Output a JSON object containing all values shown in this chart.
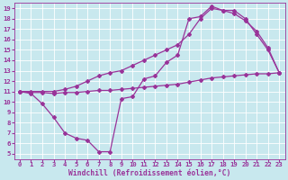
{
  "background_color": "#c8e8ee",
  "grid_color": "#b0d8e0",
  "line_color": "#993399",
  "markersize": 2.0,
  "linewidth": 0.9,
  "xlabel": "Windchill (Refroidissement éolien,°C)",
  "xlabel_fontsize": 5.8,
  "tick_fontsize": 5.2,
  "xlim": [
    -0.5,
    23.5
  ],
  "ylim": [
    4.5,
    19.5
  ],
  "xticks": [
    0,
    1,
    2,
    3,
    4,
    5,
    6,
    7,
    8,
    9,
    10,
    11,
    12,
    13,
    14,
    15,
    16,
    17,
    18,
    19,
    20,
    21,
    22,
    23
  ],
  "yticks": [
    5,
    6,
    7,
    8,
    9,
    10,
    11,
    12,
    13,
    14,
    15,
    16,
    17,
    18,
    19
  ],
  "curve1_x": [
    0,
    1,
    2,
    3,
    4,
    5,
    6,
    7,
    8,
    9,
    10,
    11,
    12,
    13,
    14,
    15,
    16,
    17,
    18,
    19,
    20,
    21,
    22,
    23
  ],
  "curve1_y": [
    11.0,
    10.8,
    9.8,
    8.5,
    7.0,
    6.5,
    6.3,
    5.2,
    5.2,
    10.3,
    10.5,
    12.2,
    12.5,
    13.8,
    14.5,
    18.0,
    18.2,
    19.2,
    18.8,
    18.8,
    18.0,
    16.5,
    15.0,
    12.8
  ],
  "curve2_x": [
    0,
    1,
    2,
    3,
    4,
    5,
    6,
    7,
    8,
    9,
    10,
    11,
    12,
    13,
    14,
    15,
    16,
    17,
    18,
    19,
    20,
    21,
    22,
    23
  ],
  "curve2_y": [
    11.0,
    11.0,
    11.0,
    11.0,
    11.2,
    11.5,
    12.0,
    12.5,
    12.8,
    13.0,
    13.5,
    14.0,
    14.5,
    15.0,
    15.5,
    16.5,
    18.0,
    19.0,
    18.8,
    18.5,
    17.8,
    16.8,
    15.2,
    12.8
  ],
  "curve3_x": [
    0,
    1,
    2,
    3,
    4,
    5,
    6,
    7,
    8,
    9,
    10,
    11,
    12,
    13,
    14,
    15,
    16,
    17,
    18,
    19,
    20,
    21,
    22,
    23
  ],
  "curve3_y": [
    11.0,
    10.9,
    10.9,
    10.8,
    10.9,
    10.9,
    11.0,
    11.1,
    11.1,
    11.2,
    11.3,
    11.4,
    11.5,
    11.6,
    11.7,
    11.9,
    12.1,
    12.3,
    12.4,
    12.5,
    12.6,
    12.7,
    12.7,
    12.8
  ]
}
